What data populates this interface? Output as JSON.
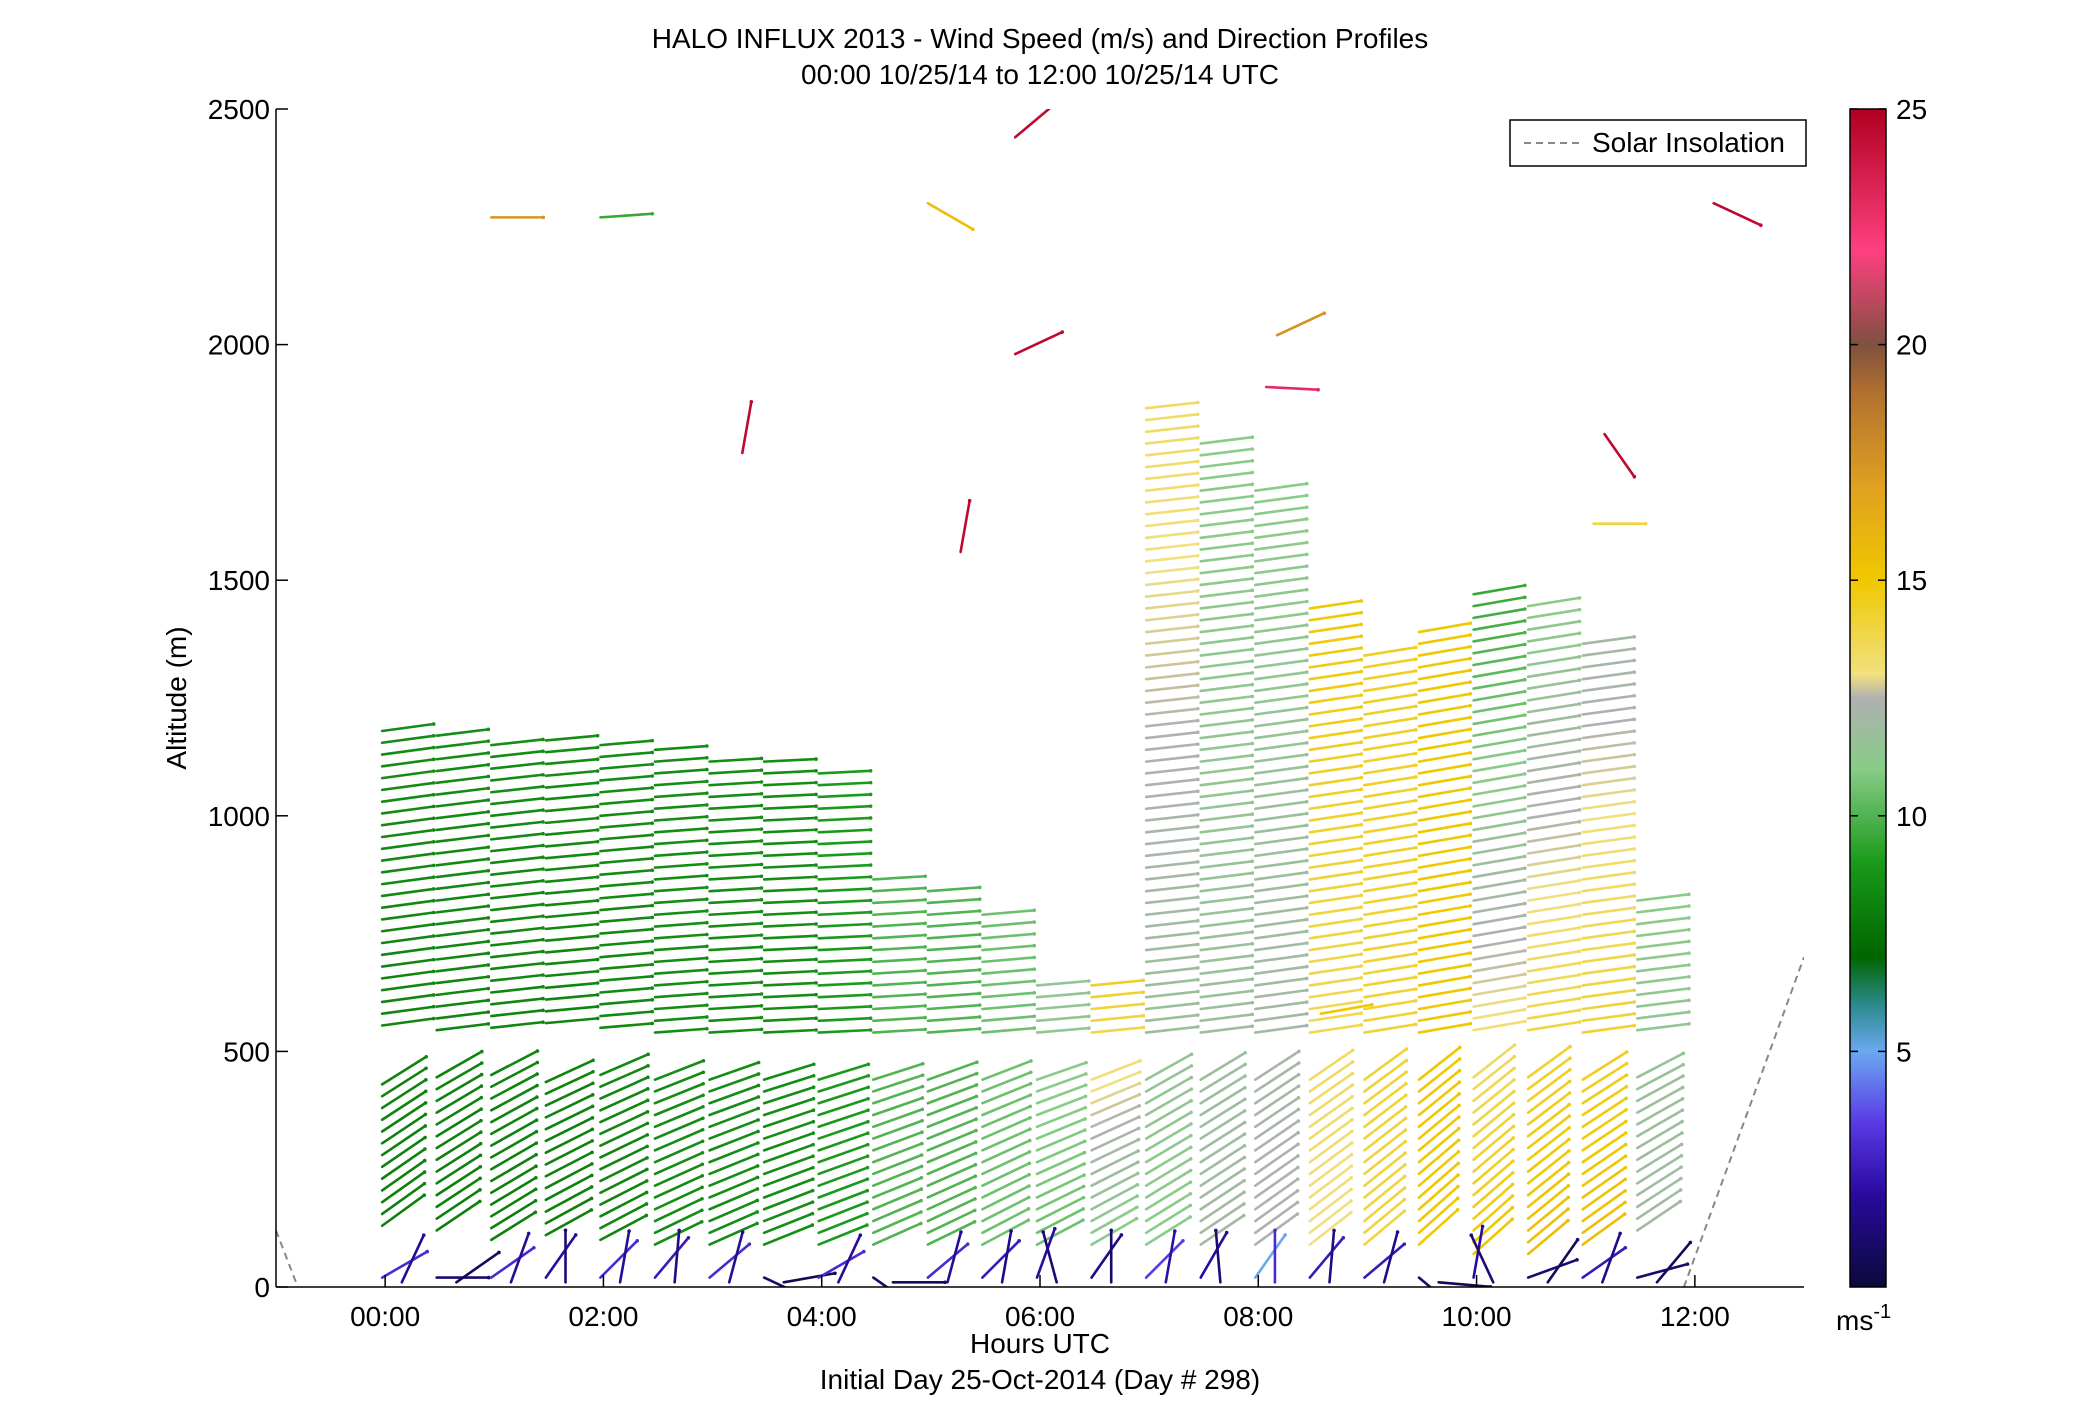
{
  "chart_data": {
    "type": "scatter",
    "subtype": "wind-barb-profile",
    "title": "HALO INFLUX 2013 - Wind Speed (m/s) and Direction Profiles",
    "subtitle": "00:00 10/25/14 to 12:00 10/25/14  UTC",
    "xlabel": "Hours UTC",
    "xlabel2": "Initial Day 25-Oct-2014 (Day # 298)",
    "ylabel": "Altitude (m)",
    "xlim": [
      -1,
      13
    ],
    "ylim": [
      0,
      2500
    ],
    "x_ticks": [
      0,
      2,
      4,
      6,
      8,
      10,
      12
    ],
    "x_tick_labels": [
      "00:00",
      "02:00",
      "04:00",
      "06:00",
      "08:00",
      "10:00",
      "12:00"
    ],
    "y_ticks": [
      0,
      500,
      1000,
      1500,
      2000,
      2500
    ],
    "y_tick_labels": [
      "0",
      "500",
      "1000",
      "1500",
      "2000",
      "2500"
    ],
    "grid": false,
    "legend": {
      "placement": "top-right",
      "entries": [
        {
          "label": "Solar Insolation",
          "style": "dashed",
          "color": "#888888"
        }
      ]
    },
    "colorbar": {
      "range": [
        0,
        25
      ],
      "ticks": [
        5,
        10,
        15,
        20,
        25
      ],
      "tick_labels": [
        "5",
        "10",
        "15",
        "20",
        "25"
      ],
      "unit_label": "ms",
      "unit_exponent": "-1",
      "stops": [
        {
          "v": 0,
          "color": "#0a0a3c"
        },
        {
          "v": 2,
          "color": "#2a0aa0"
        },
        {
          "v": 3.5,
          "color": "#5a3ae6"
        },
        {
          "v": 5,
          "color": "#6aa8f0"
        },
        {
          "v": 6,
          "color": "#2a8a8a"
        },
        {
          "v": 7,
          "color": "#006600"
        },
        {
          "v": 9,
          "color": "#1a9a1a"
        },
        {
          "v": 11,
          "color": "#88cc88"
        },
        {
          "v": 12.5,
          "color": "#b0b0b0"
        },
        {
          "v": 13,
          "color": "#f0e080"
        },
        {
          "v": 15,
          "color": "#f0c800"
        },
        {
          "v": 17,
          "color": "#e0a020"
        },
        {
          "v": 19,
          "color": "#b07030"
        },
        {
          "v": 20,
          "color": "#805040"
        },
        {
          "v": 22,
          "color": "#ff4080"
        },
        {
          "v": 25,
          "color": "#b00020"
        }
      ]
    },
    "solar_insolation": [
      {
        "x": -1.0,
        "y": 120
      },
      {
        "x": -0.8,
        "y": 0
      },
      {
        "x": 11.9,
        "y": 0
      },
      {
        "x": 13.0,
        "y": 700
      }
    ],
    "columns": [
      {
        "x": 0.0,
        "y0": 130,
        "y1": 1200,
        "spd0": 8,
        "spd1": 8.5,
        "dir": 22
      },
      {
        "x": 0.5,
        "y0": 120,
        "y1": 1180,
        "spd0": 8,
        "spd1": 8.5,
        "dir": 20
      },
      {
        "x": 1.0,
        "y0": 100,
        "y1": 1170,
        "spd0": 8,
        "spd1": 8.5,
        "dir": 18
      },
      {
        "x": 1.5,
        "y0": 110,
        "y1": 1170,
        "spd0": 8,
        "spd1": 8.5,
        "dir": 15
      },
      {
        "x": 2.0,
        "y0": 100,
        "y1": 1160,
        "spd0": 8.2,
        "spd1": 8.5,
        "dir": 14
      },
      {
        "x": 2.5,
        "y0": 90,
        "y1": 1140,
        "spd0": 8.5,
        "spd1": 8.5,
        "dir": 12
      },
      {
        "x": 3.0,
        "y0": 90,
        "y1": 1130,
        "spd0": 8.5,
        "spd1": 8.5,
        "dir": 10
      },
      {
        "x": 3.5,
        "y0": 90,
        "y1": 1120,
        "spd0": 8.5,
        "spd1": 8.5,
        "dir": 8
      },
      {
        "x": 4.0,
        "y0": 90,
        "y1": 1110,
        "spd0": 9,
        "spd1": 9,
        "dir": 8
      },
      {
        "x": 4.5,
        "y0": 90,
        "y1": 880,
        "spd0": 10,
        "spd1": 10,
        "dir": 10
      },
      {
        "x": 5.0,
        "y0": 90,
        "y1": 860,
        "spd0": 10,
        "spd1": 10,
        "dir": 12
      },
      {
        "x": 5.5,
        "y0": 90,
        "y1": 800,
        "spd0": 10.5,
        "spd1": 10.5,
        "dir": 14
      },
      {
        "x": 6.0,
        "y0": 90,
        "y1": 640,
        "spd0": 10.5,
        "spd1": 11.5,
        "dir": 14
      },
      {
        "x": 6.5,
        "y0": 90,
        "y1": 650,
        "spd0": 11,
        "spd1": 14.5,
        "dir": 16
      },
      {
        "x": 7.0,
        "y0": 90,
        "y1": 1880,
        "spd0": 11,
        "spd1": 13.5,
        "dir": 18
      },
      {
        "x": 7.5,
        "y0": 90,
        "y1": 1800,
        "spd0": 12,
        "spd1": 11,
        "dir": 20
      },
      {
        "x": 8.0,
        "y0": 90,
        "y1": 1700,
        "spd0": 12.5,
        "spd1": 11,
        "dir": 22
      },
      {
        "x": 8.5,
        "y0": 90,
        "y1": 1450,
        "spd0": 13,
        "spd1": 15,
        "dir": 24
      },
      {
        "x": 9.0,
        "y0": 90,
        "y1": 1360,
        "spd0": 14,
        "spd1": 14.5,
        "dir": 26
      },
      {
        "x": 9.5,
        "y0": 90,
        "y1": 1410,
        "spd0": 15,
        "spd1": 15,
        "dir": 28
      },
      {
        "x": 10.0,
        "y0": 70,
        "y1": 1480,
        "spd0": 15,
        "spd1": 9.5,
        "dir": 28
      },
      {
        "x": 10.5,
        "y0": 70,
        "y1": 1450,
        "spd0": 15.5,
        "spd1": 11,
        "dir": 26
      },
      {
        "x": 11.0,
        "y0": 90,
        "y1": 1370,
        "spd0": 15.5,
        "spd1": 12,
        "dir": 22
      },
      {
        "x": 11.5,
        "y0": 120,
        "y1": 820,
        "spd0": 12,
        "spd1": 11,
        "dir": 20
      }
    ],
    "isolated_barbs": [
      {
        "x": 1.0,
        "y": 2270,
        "spd": 17.5,
        "dir": 0
      },
      {
        "x": 2.0,
        "y": 2270,
        "spd": 9.5,
        "dir": 4
      },
      {
        "x": 5.0,
        "y": 2300,
        "spd": 15.5,
        "dir": -30
      },
      {
        "x": 5.8,
        "y": 2440,
        "spd": 24.5,
        "dir": 40
      },
      {
        "x": 5.8,
        "y": 1980,
        "spd": 24.5,
        "dir": 25
      },
      {
        "x": 3.3,
        "y": 1770,
        "spd": 24.5,
        "dir": 80
      },
      {
        "x": 5.3,
        "y": 1560,
        "spd": 24.5,
        "dir": 80
      },
      {
        "x": 8.2,
        "y": 2020,
        "spd": 17.5,
        "dir": 25
      },
      {
        "x": 8.1,
        "y": 1910,
        "spd": 23,
        "dir": -3
      },
      {
        "x": 11.2,
        "y": 1810,
        "spd": 24.5,
        "dir": -55
      },
      {
        "x": 12.2,
        "y": 2300,
        "spd": 24.5,
        "dir": -25
      },
      {
        "x": 11.1,
        "y": 1620,
        "spd": 14,
        "dir": 0
      },
      {
        "x": 8.6,
        "y": 580,
        "spd": 15,
        "dir": 10
      }
    ],
    "surface_barbs": [
      {
        "x": 0.0,
        "spd": 3,
        "dir": 30
      },
      {
        "x": 0.5,
        "spd": 1,
        "dir": 0
      },
      {
        "x": 1.0,
        "spd": 3,
        "dir": 35
      },
      {
        "x": 1.5,
        "spd": 2,
        "dir": 55
      },
      {
        "x": 2.0,
        "spd": 3,
        "dir": 45
      },
      {
        "x": 2.5,
        "spd": 2.5,
        "dir": 50
      },
      {
        "x": 3.0,
        "spd": 3,
        "dir": 40
      },
      {
        "x": 3.5,
        "spd": 1,
        "dir": -25
      },
      {
        "x": 4.0,
        "spd": 3,
        "dir": 30
      },
      {
        "x": 4.5,
        "spd": 1,
        "dir": -35
      },
      {
        "x": 5.0,
        "spd": 3,
        "dir": 40
      },
      {
        "x": 5.5,
        "spd": 2.5,
        "dir": 45
      },
      {
        "x": 6.0,
        "spd": 2,
        "dir": 70
      },
      {
        "x": 6.5,
        "spd": 1.5,
        "dir": 55
      },
      {
        "x": 7.0,
        "spd": 3.5,
        "dir": 45
      },
      {
        "x": 7.5,
        "spd": 2,
        "dir": 60
      },
      {
        "x": 8.0,
        "spd": 5,
        "dir": 55
      },
      {
        "x": 8.5,
        "spd": 2.5,
        "dir": 50
      },
      {
        "x": 9.0,
        "spd": 2.5,
        "dir": 40
      },
      {
        "x": 9.5,
        "spd": 1,
        "dir": -40
      },
      {
        "x": 10.0,
        "spd": 2,
        "dir": 80
      },
      {
        "x": 10.5,
        "spd": 1,
        "dir": 20
      },
      {
        "x": 11.0,
        "spd": 2.5,
        "dir": 35
      },
      {
        "x": 11.5,
        "spd": 1,
        "dir": 15
      }
    ]
  }
}
